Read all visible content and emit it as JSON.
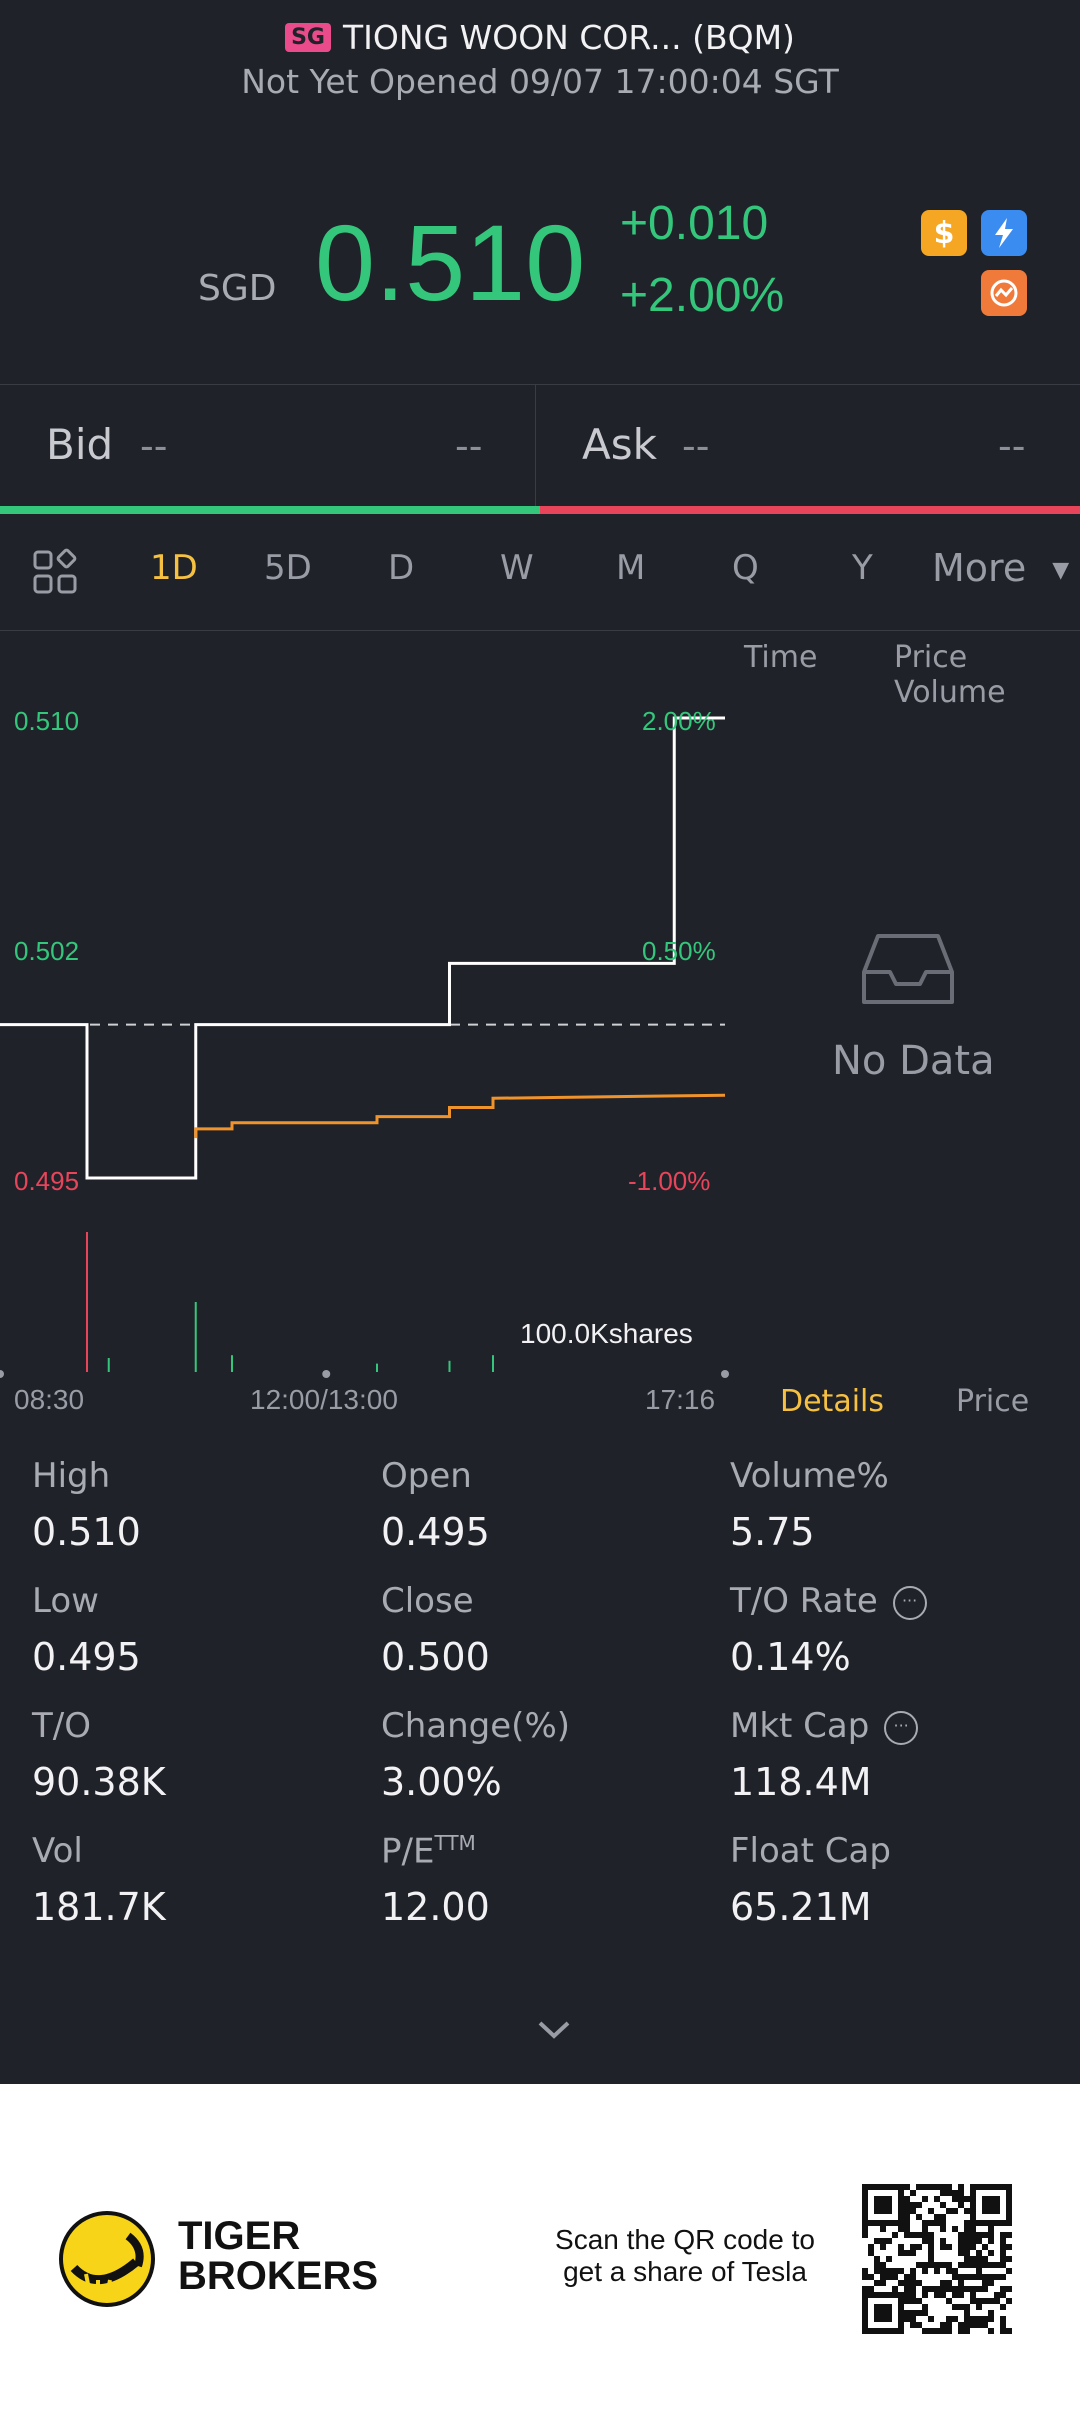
{
  "header": {
    "market_badge": "SG",
    "title": "TIONG WOON COR... (BQM)",
    "status": "Not Yet Opened 09/07 17:00:04 SGT"
  },
  "quote": {
    "currency": "SGD",
    "price": "0.510",
    "change": "+0.010",
    "change_pct": "+2.00%"
  },
  "icons": [
    "dollar-icon",
    "lightning-icon",
    "chart-swap-icon"
  ],
  "bid_ask": {
    "bid_label": "Bid",
    "bid_price": "--",
    "bid_size": "--",
    "ask_label": "Ask",
    "ask_price": "--",
    "ask_size": "--"
  },
  "tabs": [
    "1D",
    "5D",
    "D",
    "W",
    "M",
    "Q",
    "Y"
  ],
  "active_tab": "1D",
  "more_label": "More",
  "side_tabs": {
    "time": "Time",
    "price_volume": "Price Volume",
    "details": "Details",
    "price": "Price"
  },
  "no_data": "No Data",
  "chart_data": {
    "type": "line",
    "title": "",
    "y_labels_left": [
      "0.510",
      "0.502",
      "0.495"
    ],
    "y_labels_right": [
      "2.00%",
      "0.50%",
      "-1.00%"
    ],
    "x_labels": [
      "08:30",
      "12:00/13:00",
      "17:16"
    ],
    "ylim": [
      0.495,
      0.51
    ],
    "previous_close": 0.5,
    "series": [
      {
        "name": "Price",
        "color": "#ffffff",
        "x": [
          0,
          0.12,
          0.12,
          0.27,
          0.27,
          0.62,
          0.62,
          0.93,
          0.93,
          1.0
        ],
        "values": [
          0.5,
          0.5,
          0.495,
          0.495,
          0.5,
          0.5,
          0.502,
          0.502,
          0.51,
          0.51
        ]
      },
      {
        "name": "Average",
        "color": "#f0932b",
        "x": [
          0.27,
          0.27,
          0.32,
          0.32,
          0.52,
          0.52,
          0.62,
          0.62,
          0.68,
          0.68,
          1.0
        ],
        "values": [
          0.4963,
          0.4966,
          0.4966,
          0.4968,
          0.4968,
          0.497,
          0.497,
          0.4973,
          0.4973,
          0.4976,
          0.4977
        ]
      }
    ],
    "volume_label": "100.0Kshares",
    "volume": [
      {
        "x": 0.12,
        "value": 100,
        "color": "#e8445a"
      },
      {
        "x": 0.15,
        "value": 10,
        "color": "#34c77b"
      },
      {
        "x": 0.27,
        "value": 50,
        "color": "#34c77b"
      },
      {
        "x": 0.32,
        "value": 12,
        "color": "#34c77b"
      },
      {
        "x": 0.52,
        "value": 6,
        "color": "#34c77b"
      },
      {
        "x": 0.62,
        "value": 8,
        "color": "#34c77b"
      },
      {
        "x": 0.68,
        "value": 12,
        "color": "#34c77b"
      }
    ]
  },
  "stats": [
    {
      "label": "High",
      "value": "0.510"
    },
    {
      "label": "Open",
      "value": "0.495"
    },
    {
      "label": "Volume%",
      "value": "5.75"
    },
    {
      "label": "Low",
      "value": "0.495"
    },
    {
      "label": "Close",
      "value": "0.500"
    },
    {
      "label": "T/O Rate",
      "value": "0.14%"
    },
    {
      "label": "T/O",
      "value": "90.38K"
    },
    {
      "label": "Change(%)",
      "value": "3.00%"
    },
    {
      "label": "Mkt Cap",
      "value": "118.4M"
    },
    {
      "label": "Vol",
      "value": "181.7K"
    },
    {
      "label": "P/E",
      "value": "12.00",
      "superscript": "TTM"
    },
    {
      "label": "Float Cap",
      "value": "65.21M"
    }
  ],
  "footer": {
    "brand_line1": "TIGER",
    "brand_line2": "BROKERS",
    "scan_line1": "Scan the QR code to",
    "scan_line2": "get a share of Tesla"
  },
  "colors": {
    "up": "#34c77b",
    "down": "#e8445a",
    "accent": "#f6c141",
    "bg": "#20222a"
  }
}
